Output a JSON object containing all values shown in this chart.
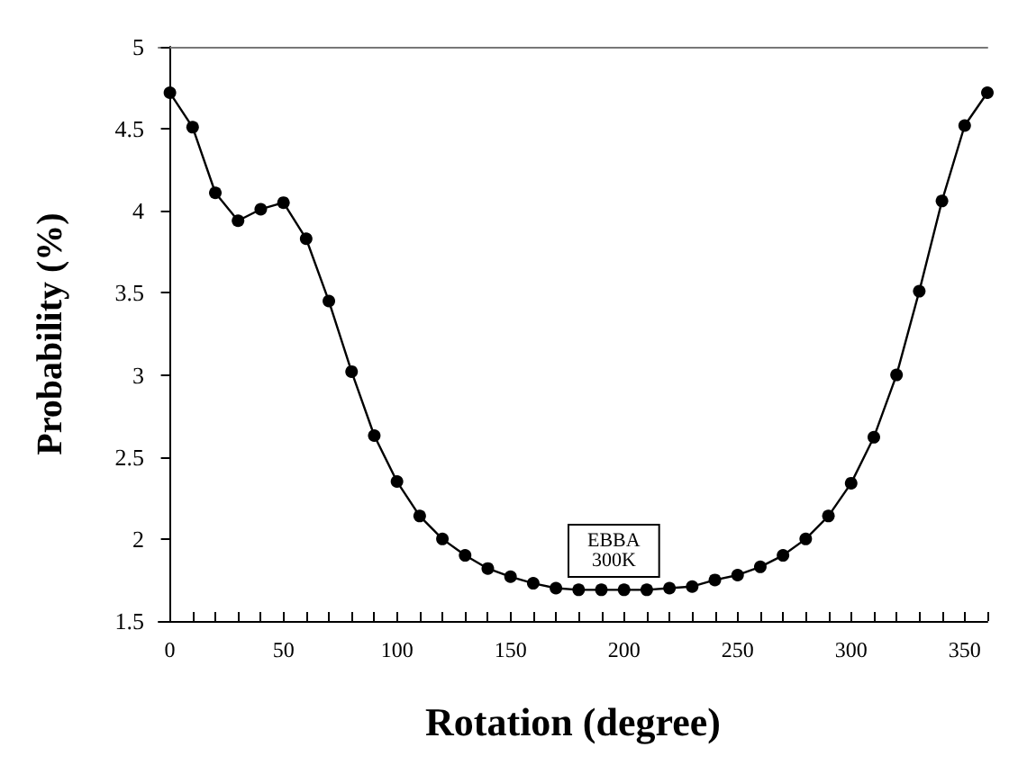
{
  "chart_data": {
    "type": "line",
    "xlabel": "Rotation (degree)",
    "ylabel": "Probability (%)",
    "annotations": [
      "EBBA\n300K"
    ],
    "x": [
      0,
      10,
      20,
      30,
      40,
      50,
      60,
      70,
      80,
      90,
      100,
      110,
      120,
      130,
      140,
      150,
      160,
      170,
      180,
      190,
      200,
      210,
      220,
      230,
      240,
      250,
      260,
      270,
      280,
      290,
      300,
      310,
      320,
      330,
      340,
      350,
      360
    ],
    "series": [
      {
        "color": "#000000",
        "values": [
          4.72,
          4.51,
          4.11,
          3.94,
          4.01,
          4.05,
          3.83,
          3.45,
          3.02,
          2.63,
          2.35,
          2.14,
          2.0,
          1.9,
          1.82,
          1.77,
          1.73,
          1.7,
          1.69,
          1.69,
          1.69,
          1.69,
          1.7,
          1.71,
          1.75,
          1.78,
          1.83,
          1.9,
          2.0,
          2.14,
          2.34,
          2.62,
          3.0,
          3.51,
          4.06,
          4.52,
          4.72
        ]
      }
    ],
    "xlim": [
      -5,
      360
    ],
    "xticks": [
      0,
      50,
      100,
      150,
      200,
      250,
      300,
      350
    ],
    "ylim": [
      1.5,
      5
    ],
    "yticks": [
      1.5,
      2,
      2.5,
      3,
      3.5,
      4,
      4.5,
      5
    ],
    "marker": "circle",
    "line_style": "solid"
  }
}
